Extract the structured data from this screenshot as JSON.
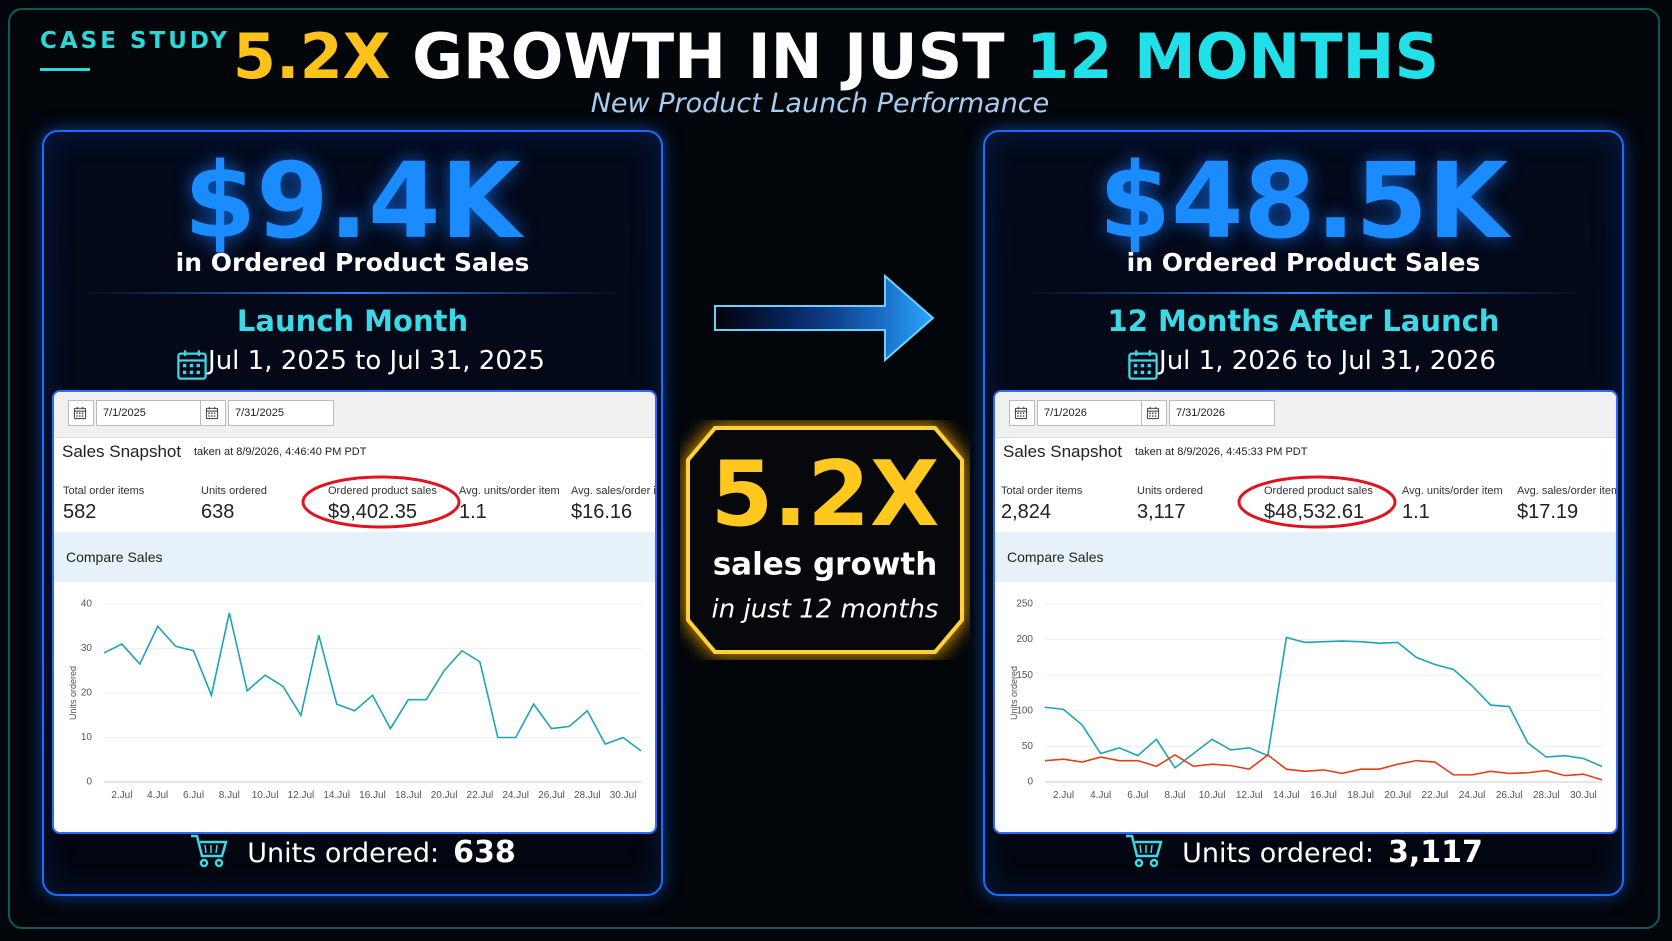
{
  "header": {
    "tag": "CASE STUDY",
    "title_parts": [
      "5.2X",
      "GROWTH IN JUST",
      "12 MONTHS"
    ],
    "subtitle": "New Product Launch Performance"
  },
  "panels": [
    {
      "headline": "$9.4K",
      "headline_caption": "in Ordered Product Sales",
      "period": "Launch Month",
      "date_range": "Jul 1, 2025 to Jul 31, 2025",
      "screenshot": {
        "start_date": "7/1/2025",
        "end_date": "7/31/2025",
        "title": "Sales Snapshot",
        "taken_at": "taken at 8/9/2026, 4:46:40 PM PDT",
        "metrics": [
          {
            "label": "Total order items",
            "value": "582"
          },
          {
            "label": "Units ordered",
            "value": "638"
          },
          {
            "label": "Ordered product sales",
            "value": "$9,402.35"
          },
          {
            "label": "Avg. units/order item",
            "value": "1.1"
          },
          {
            "label": "Avg. sales/order ite",
            "value": "$16.16"
          }
        ],
        "compare_title": "Compare Sales"
      },
      "footer_label": "Units ordered:",
      "footer_value": "638"
    },
    {
      "headline": "$48.5K",
      "headline_caption": "in Ordered Product Sales",
      "period": "12 Months After Launch",
      "date_range": "Jul 1, 2026 to Jul 31, 2026",
      "screenshot": {
        "start_date": "7/1/2026",
        "end_date": "7/31/2026",
        "title": "Sales Snapshot",
        "taken_at": "taken at 8/9/2026, 4:45:33 PM PDT",
        "metrics": [
          {
            "label": "Total order items",
            "value": "2,824"
          },
          {
            "label": "Units ordered",
            "value": "3,117"
          },
          {
            "label": "Ordered product sales",
            "value": "$48,532.61"
          },
          {
            "label": "Avg. units/order item",
            "value": "1.1"
          },
          {
            "label": "Avg. sales/order item",
            "value": "$17.19"
          }
        ],
        "compare_title": "Compare Sales"
      },
      "footer_label": "Units ordered:",
      "footer_value": "3,117"
    }
  ],
  "badge": {
    "value": "5.2X",
    "line1": "sales growth",
    "line2": "in just 12 months"
  },
  "chart_data": [
    {
      "type": "line",
      "ylabel": "Units ordered",
      "categories": [
        null,
        "2.Jul",
        null,
        "4.Jul",
        null,
        "6.Jul",
        null,
        "8.Jul",
        null,
        "10.Jul",
        null,
        "12.Jul",
        null,
        "14.Jul",
        null,
        "16.Jul",
        null,
        "18.Jul",
        null,
        "20.Jul",
        null,
        "22.Jul",
        null,
        "24.Jul",
        null,
        "26.Jul",
        null,
        "28.Jul",
        null,
        "30.Jul",
        null
      ],
      "series": [
        {
          "color": "#1fa3b8",
          "values": [
            29,
            31,
            26.5,
            35,
            30.5,
            29.5,
            19.5,
            38,
            20.5,
            24,
            21.5,
            15,
            33,
            17.5,
            16,
            19.5,
            12,
            18.5,
            18.5,
            25,
            29.5,
            27,
            10,
            10,
            17.5,
            12,
            12.5,
            16,
            8.5,
            10,
            7
          ]
        }
      ],
      "ylim": [
        0,
        40
      ],
      "yticks": [
        0,
        10,
        20,
        30,
        40
      ]
    },
    {
      "type": "line",
      "ylabel": "Units ordered",
      "categories": [
        null,
        "2.Jul",
        null,
        "4.Jul",
        null,
        "6.Jul",
        null,
        "8.Jul",
        null,
        "10.Jul",
        null,
        "12.Jul",
        null,
        "14.Jul",
        null,
        "16.Jul",
        null,
        "18.Jul",
        null,
        "20.Jul",
        null,
        "22.Jul",
        null,
        "24.Jul",
        null,
        "26.Jul",
        null,
        "28.Jul",
        null,
        "30.Jul",
        null
      ],
      "series": [
        {
          "color": "#1fa3b8",
          "values": [
            105,
            102,
            80,
            40,
            48,
            37,
            60,
            20,
            40,
            60,
            45,
            48,
            37,
            203,
            196,
            197,
            198,
            197,
            195,
            196,
            175,
            165,
            158,
            135,
            108,
            106,
            55,
            35,
            37,
            33,
            22
          ]
        },
        {
          "color": "#e0401c",
          "values": [
            30,
            32,
            28,
            35,
            30,
            30,
            22,
            38,
            22,
            25,
            23,
            18,
            38,
            18,
            15,
            17,
            12,
            18,
            18,
            25,
            30,
            28,
            10,
            10,
            15,
            12,
            13,
            16,
            9,
            11,
            3
          ]
        }
      ],
      "ylim": [
        0,
        250
      ],
      "yticks": [
        0,
        50,
        100,
        150,
        200,
        250
      ]
    }
  ]
}
